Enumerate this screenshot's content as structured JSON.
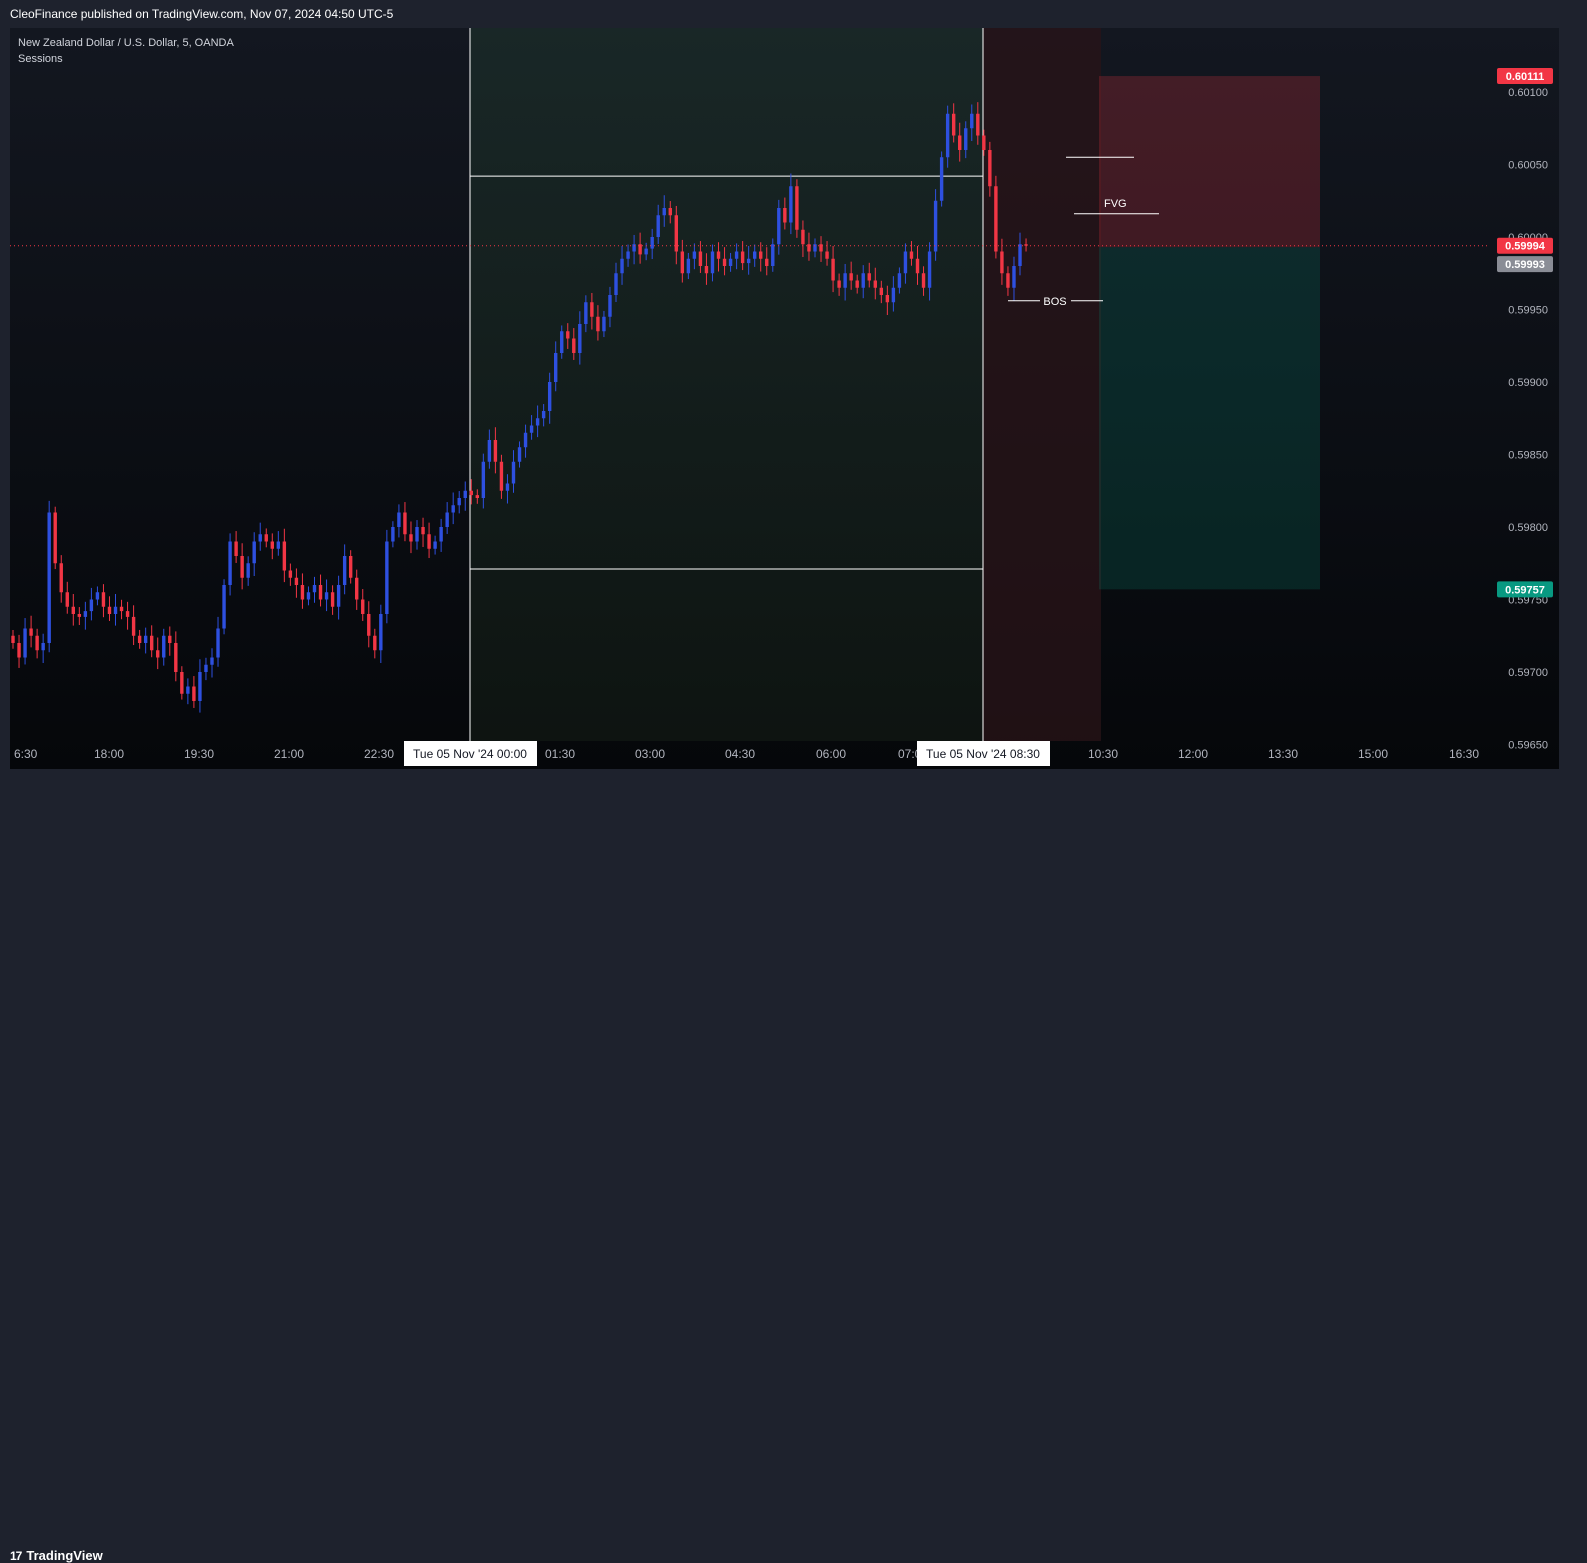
{
  "header": {
    "published": "CleoFinance published on TradingView.com, Nov 07, 2024 04:50 UTC-5"
  },
  "chart_header": {
    "symbol": "New Zealand Dollar / U.S. Dollar, 5, OANDA",
    "indicator": "Sessions"
  },
  "footer": {
    "brand": "TradingView"
  },
  "colors": {
    "up": "#2e50e0",
    "down": "#f23645",
    "background": "#0d0f15",
    "panel": "#1e222d",
    "target_tag": "#089981",
    "stop_tag": "#f23645",
    "last_price_tag": "#f23645",
    "prev_price_tag": "#8a8d96"
  },
  "chart_data": {
    "type": "candlestick",
    "title": "New Zealand Dollar / U.S. Dollar, 5, OANDA",
    "ylim": [
      0.5965,
      0.6014
    ],
    "y_ticks": [
      "0.60100",
      "0.60050",
      "0.60000",
      "0.59950",
      "0.59900",
      "0.59850",
      "0.59800",
      "0.59750",
      "0.59700",
      "0.59650"
    ],
    "x_ticks": [
      "6:30",
      "18:00",
      "19:30",
      "21:00",
      "22:30",
      "01:30",
      "03:00",
      "04:30",
      "06:00",
      "07:00",
      "10:30",
      "12:00",
      "13:30",
      "15:00",
      "16:30"
    ],
    "session_labels": [
      "Tue 05 Nov '24   00:00",
      "Tue 05 Nov '24   08:30"
    ],
    "price_tags": [
      {
        "label": "0.60111",
        "value": 0.60111,
        "kind": "stop"
      },
      {
        "label": "0.59994",
        "value": 0.59994,
        "kind": "last"
      },
      {
        "label": "0.59993",
        "value": 0.59993,
        "kind": "prev"
      },
      {
        "label": "0.59757",
        "value": 0.59757,
        "kind": "target"
      }
    ],
    "session_box": {
      "high": 0.60042,
      "low": 0.59771
    },
    "position": {
      "entry": 0.59993,
      "stop": 0.60111,
      "target": 0.59757
    },
    "annotations": [
      {
        "text": "FVG",
        "value": 0.60016
      },
      {
        "text": "BOS",
        "value": 0.59956
      }
    ],
    "level_lines": [
      0.60055,
      0.60016
    ],
    "closes": [
      0.5972,
      0.5971,
      0.5973,
      0.59725,
      0.59715,
      0.5972,
      0.5981,
      0.59775,
      0.59755,
      0.59745,
      0.5974,
      0.59738,
      0.59742,
      0.5975,
      0.59755,
      0.59745,
      0.5974,
      0.59745,
      0.59742,
      0.59738,
      0.59725,
      0.5972,
      0.59725,
      0.59715,
      0.5971,
      0.59725,
      0.5972,
      0.597,
      0.59685,
      0.5969,
      0.5968,
      0.597,
      0.59705,
      0.5971,
      0.5973,
      0.5976,
      0.5979,
      0.5978,
      0.59765,
      0.59775,
      0.5979,
      0.59795,
      0.5979,
      0.59785,
      0.5979,
      0.5977,
      0.59765,
      0.5976,
      0.5975,
      0.59755,
      0.5976,
      0.5975,
      0.59755,
      0.59745,
      0.5976,
      0.5978,
      0.59765,
      0.5975,
      0.5974,
      0.59725,
      0.59715,
      0.5974,
      0.5979,
      0.598,
      0.5981,
      0.59795,
      0.5979,
      0.598,
      0.59795,
      0.59785,
      0.5979,
      0.598,
      0.5981,
      0.59815,
      0.5982,
      0.59825,
      0.59822,
      0.5982,
      0.59845,
      0.5986,
      0.59845,
      0.59825,
      0.5983,
      0.59845,
      0.59855,
      0.59865,
      0.5987,
      0.59875,
      0.5988,
      0.599,
      0.5992,
      0.59935,
      0.5993,
      0.5992,
      0.5994,
      0.59955,
      0.59945,
      0.59935,
      0.59945,
      0.5996,
      0.59975,
      0.59985,
      0.5999,
      0.59995,
      0.59988,
      0.59992,
      0.6,
      0.60015,
      0.6002,
      0.60015,
      0.5999,
      0.59975,
      0.59985,
      0.5999,
      0.5998,
      0.59975,
      0.5999,
      0.59985,
      0.5998,
      0.59985,
      0.5999,
      0.59982,
      0.59985,
      0.5999,
      0.59985,
      0.5998,
      0.59995,
      0.6002,
      0.6001,
      0.60035,
      0.60005,
      0.59995,
      0.5999,
      0.59995,
      0.5999,
      0.59985,
      0.5997,
      0.59965,
      0.59975,
      0.5997,
      0.59965,
      0.59975,
      0.5997,
      0.59965,
      0.5996,
      0.59955,
      0.59965,
      0.59975,
      0.5999,
      0.59985,
      0.59975,
      0.59965,
      0.5999,
      0.60025,
      0.60055,
      0.60085,
      0.6007,
      0.6006,
      0.60075,
      0.60085,
      0.6007,
      0.6006,
      0.60035,
      0.5999,
      0.59975,
      0.59965,
      0.5998,
      0.59995,
      0.59994
    ]
  }
}
